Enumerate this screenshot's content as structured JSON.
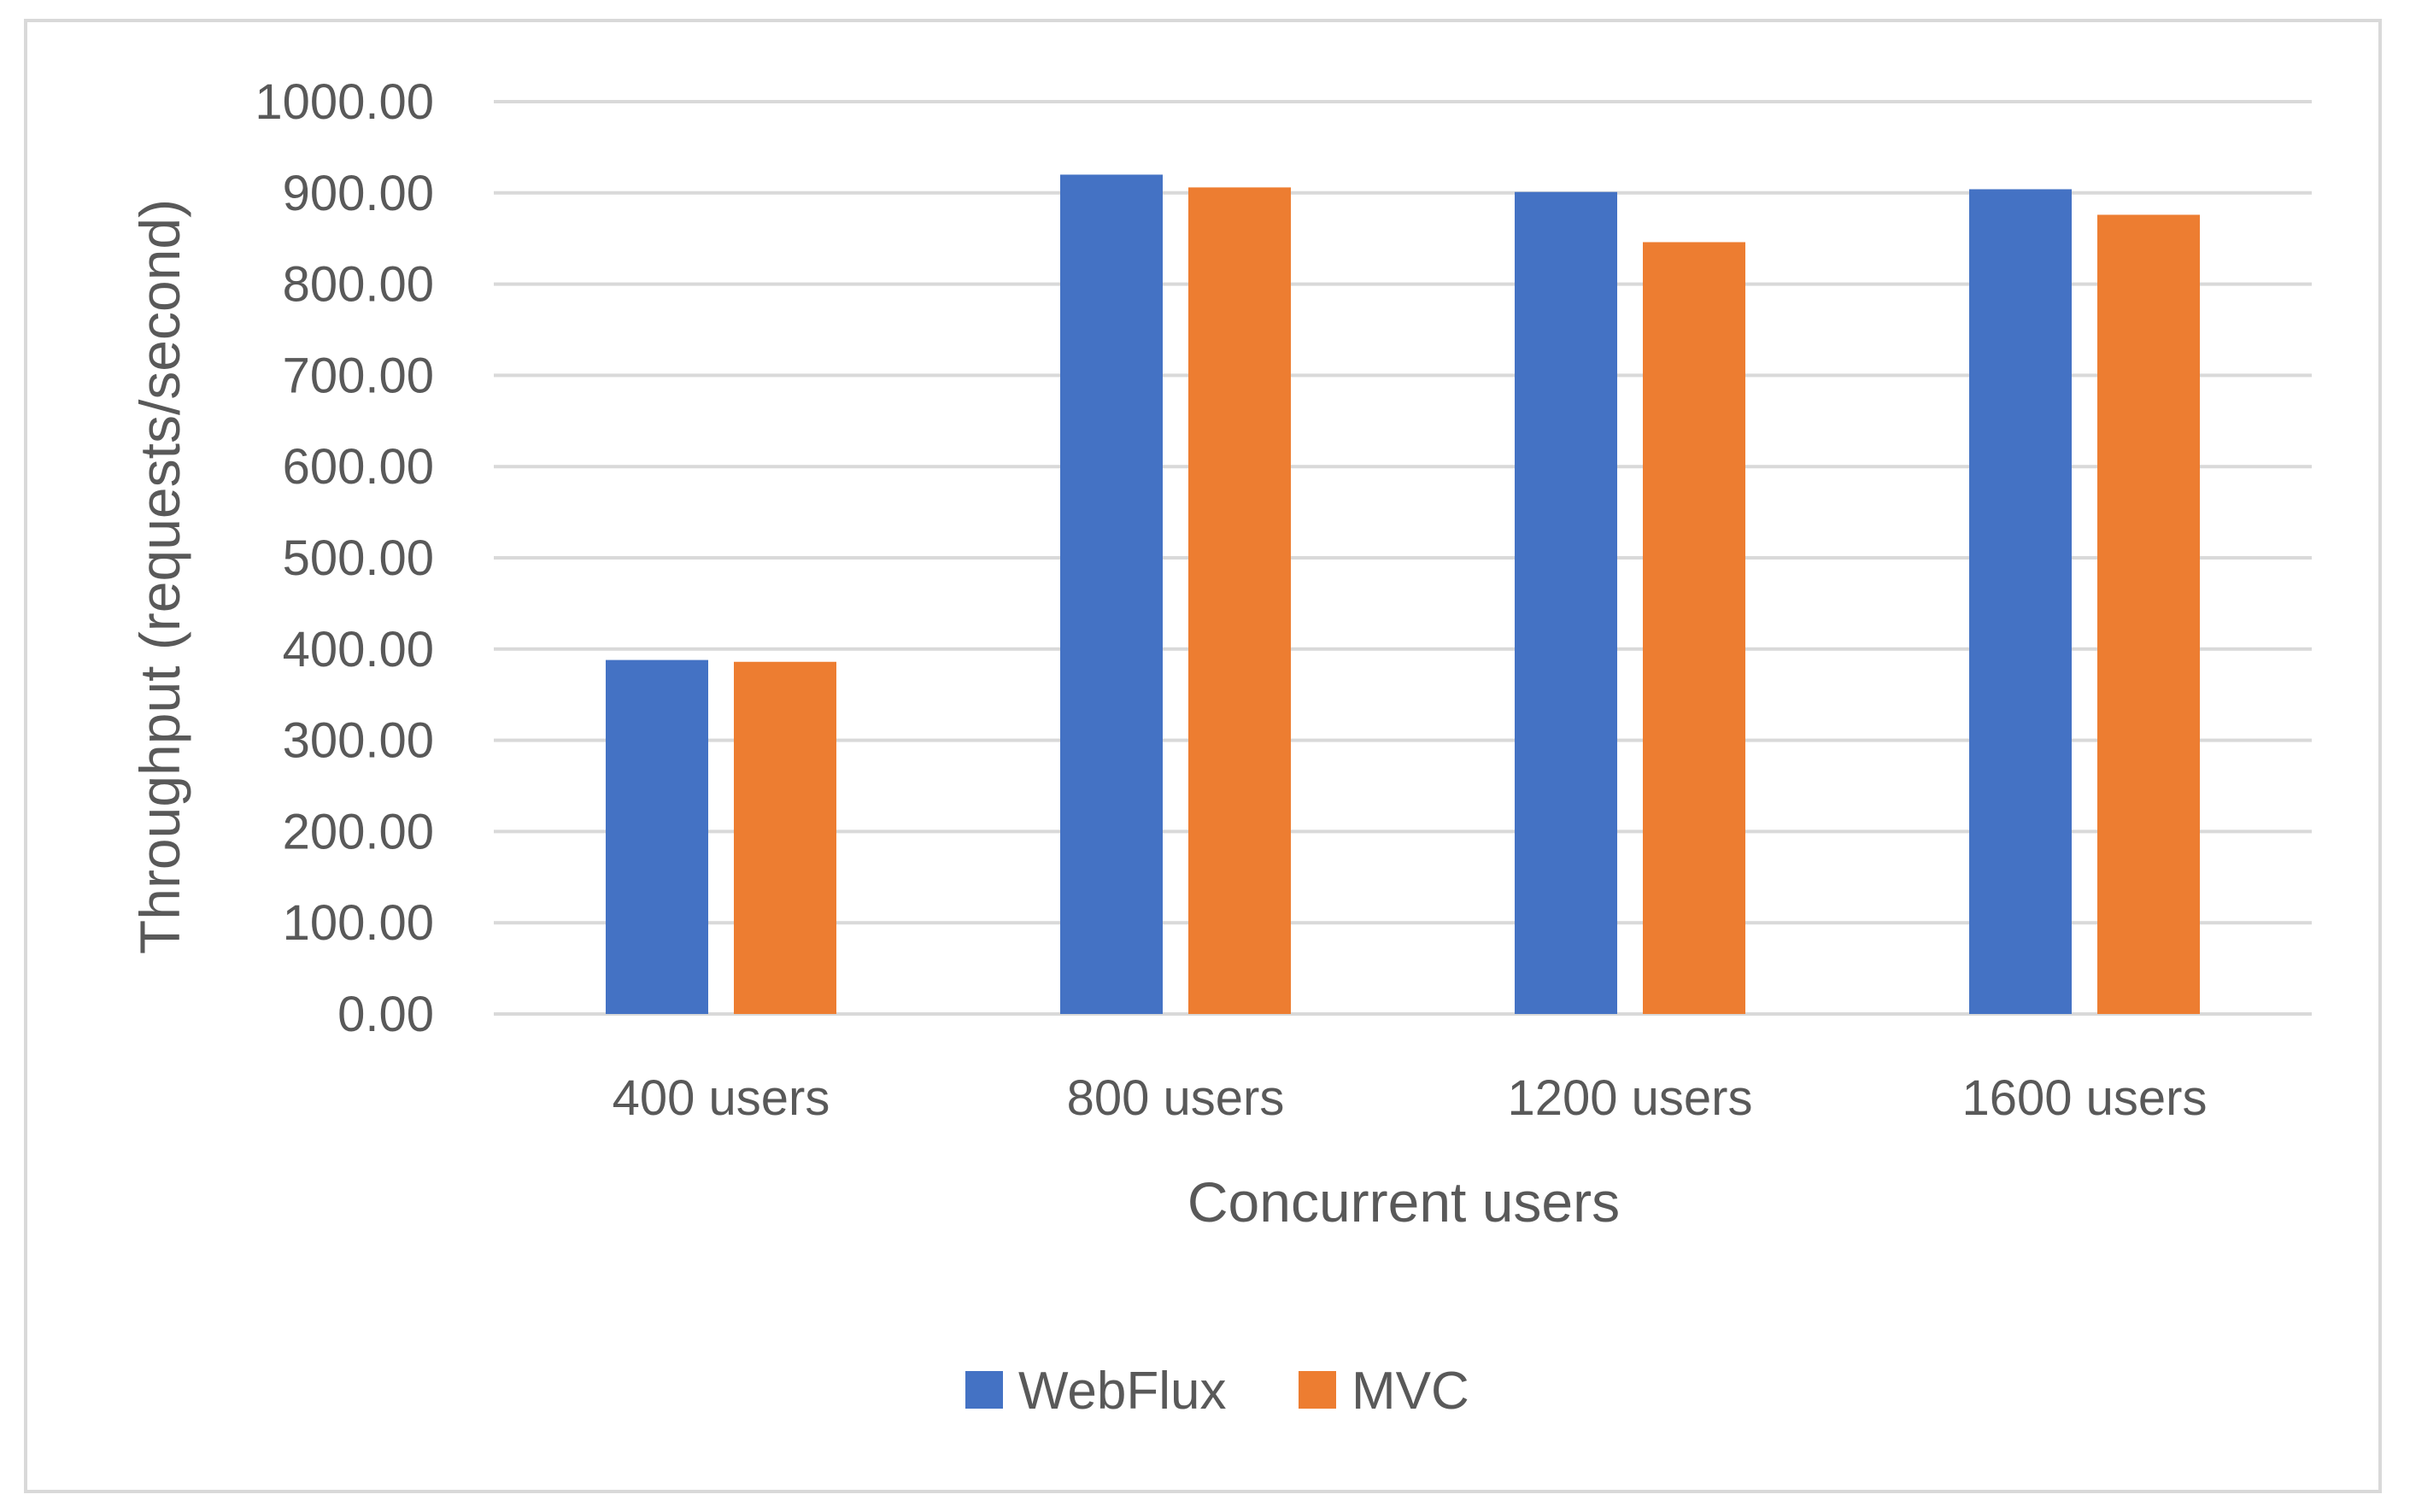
{
  "chart_data": {
    "type": "bar",
    "title": "",
    "xlabel": "Concurrent users",
    "ylabel": "Throughput (requests/second)",
    "categories": [
      "400 users",
      "800 users",
      "1200 users",
      "1600 users"
    ],
    "series": [
      {
        "name": "WebFlux",
        "color": "#4472c4",
        "values": [
          388,
          920,
          901,
          904
        ]
      },
      {
        "name": "MVC",
        "color": "#ed7d31",
        "values": [
          386,
          906,
          846,
          876
        ]
      }
    ],
    "ylim": [
      0,
      1000
    ],
    "yticks": [
      "0.00",
      "100.00",
      "200.00",
      "300.00",
      "400.00",
      "500.00",
      "600.00",
      "700.00",
      "800.00",
      "900.00",
      "1000.00"
    ],
    "ytick_values": [
      0,
      100,
      200,
      300,
      400,
      500,
      600,
      700,
      800,
      900,
      1000
    ],
    "grid": true,
    "legend_position": "bottom",
    "colors": {
      "gridline": "#d9d9d9",
      "text": "#595959",
      "border": "#d9d9d9"
    }
  }
}
